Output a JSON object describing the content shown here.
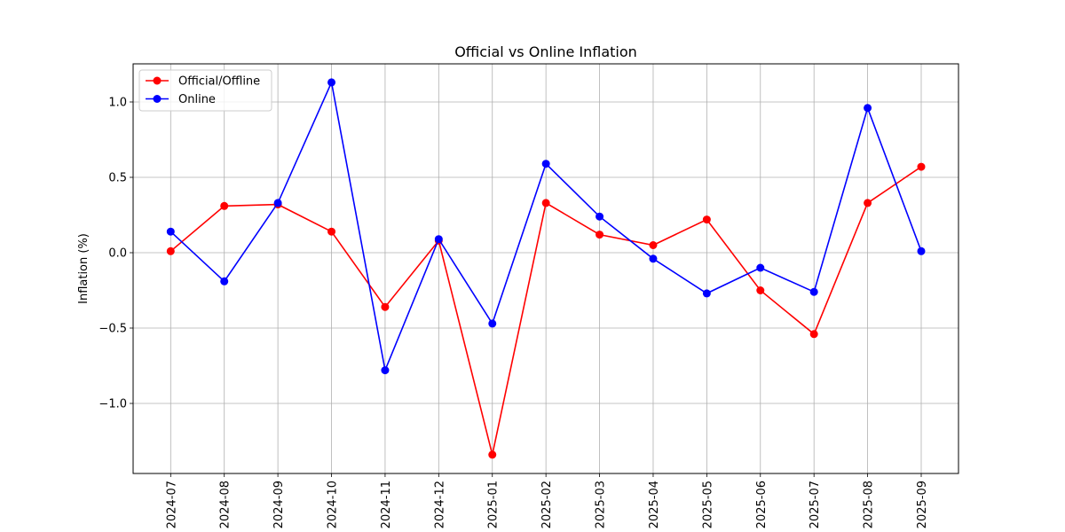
{
  "chart_data": {
    "type": "line",
    "title": "Official vs Online Inflation",
    "xlabel": "",
    "ylabel": "Inflation (%)",
    "categories": [
      "2024-07",
      "2024-08",
      "2024-09",
      "2024-10",
      "2024-11",
      "2024-12",
      "2025-01",
      "2025-02",
      "2025-03",
      "2025-04",
      "2025-05",
      "2025-06",
      "2025-07",
      "2025-08",
      "2025-09"
    ],
    "ylim": [
      -1.4,
      1.25
    ],
    "yticks": [
      -1.0,
      -0.5,
      0.0,
      0.5,
      1.0
    ],
    "ytick_labels": [
      "−1.0",
      "−0.5",
      "0.0",
      "0.5",
      "1.0"
    ],
    "grid": true,
    "legend_position": "top-left",
    "series": [
      {
        "name": "Official/Offline",
        "color": "#ff0000",
        "marker": "circle",
        "values": [
          0.01,
          0.31,
          0.32,
          0.14,
          -0.36,
          0.08,
          -1.34,
          0.33,
          0.12,
          0.05,
          0.22,
          -0.25,
          -0.54,
          0.33,
          0.57
        ]
      },
      {
        "name": "Online",
        "color": "#0000ff",
        "marker": "circle",
        "values": [
          0.14,
          -0.19,
          0.33,
          1.13,
          -0.78,
          0.09,
          -0.47,
          0.59,
          0.24,
          -0.04,
          -0.27,
          -0.1,
          -0.26,
          0.96,
          0.01
        ]
      }
    ]
  }
}
